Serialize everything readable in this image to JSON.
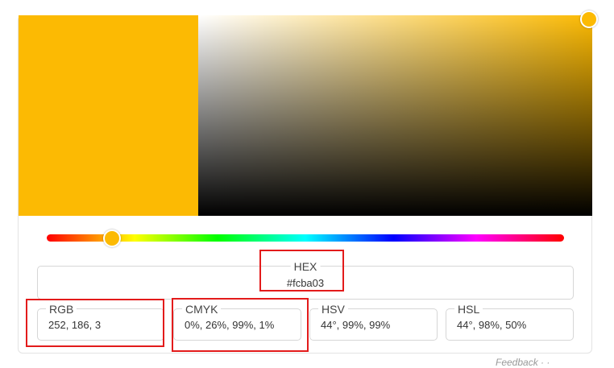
{
  "picker": {
    "current_color": "#fcba03",
    "hue_degrees": 44
  },
  "fields": {
    "hex": {
      "label": "HEX",
      "value": "#fcba03"
    },
    "rgb": {
      "label": "RGB",
      "value": "252, 186, 3"
    },
    "cmyk": {
      "label": "CMYK",
      "value": "0%, 26%, 99%, 1%"
    },
    "hsv": {
      "label": "HSV",
      "value": "44°, 99%, 99%"
    },
    "hsl": {
      "label": "HSL",
      "value": "44°, 98%, 50%"
    }
  },
  "footer": {
    "text": "Feedback  ·  ·"
  },
  "colors": {
    "accent": "#fcba03",
    "highlight": "#e31b1b"
  }
}
